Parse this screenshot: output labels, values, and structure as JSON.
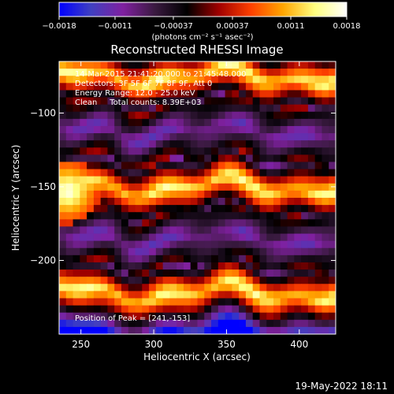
{
  "chart_data": {
    "type": "heatmap",
    "title": "Reconstructed RHESSI Image",
    "xlabel": "Heliocentric X (arcsec)",
    "ylabel": "Heliocentric Y (arcsec)",
    "xlim": [
      235,
      425
    ],
    "ylim": [
      -250,
      -65
    ],
    "x_ticks": [
      250,
      300,
      350,
      400
    ],
    "x_tick_labels": [
      "250",
      "300",
      "350",
      "400"
    ],
    "y_ticks": [
      -100,
      -150,
      -200
    ],
    "y_tick_labels": [
      "−100",
      "−150",
      "−200"
    ],
    "colorbar": {
      "min": -0.0018,
      "max": 0.0018,
      "tick_values": [
        -0.0018,
        -0.0011,
        -0.00037,
        0.00037,
        0.0011,
        0.0018
      ],
      "tick_labels": [
        "−0.0018",
        "−0.0011",
        "−0.00037",
        "0.00037",
        "0.0011",
        "0.0018"
      ],
      "units_label": "(photons cm⁻² s⁻¹ asec⁻²)",
      "colormap": [
        "#0000ff",
        "#4040c0",
        "#8020a0",
        "#3a1a40",
        "#000000",
        "#a00000",
        "#ff4000",
        "#ffa500",
        "#ffff80",
        "#ffffff"
      ]
    },
    "annotations": [
      "14-Mar-2015 21:41:20.000 to 21:45:48.000",
      "Detectors: 3F 5F 6F 7F 8F 9F, Att 0",
      "Energy Range: 12.0 - 25.0 keV",
      "Clean     Total counts: 8.39E+03"
    ],
    "peak_label": "Position of Peak = [241,-153]",
    "bands": [
      {
        "y_center": -75,
        "kind": "bright"
      },
      {
        "y_center": -112,
        "kind": "dark"
      },
      {
        "y_center": -150,
        "kind": "bright"
      },
      {
        "y_center": -185,
        "kind": "dark"
      },
      {
        "y_center": -222,
        "kind": "bright"
      }
    ],
    "peak": {
      "x": 241,
      "y": -153
    }
  },
  "footer": {
    "timestamp": "19-May-2022 18:11"
  }
}
